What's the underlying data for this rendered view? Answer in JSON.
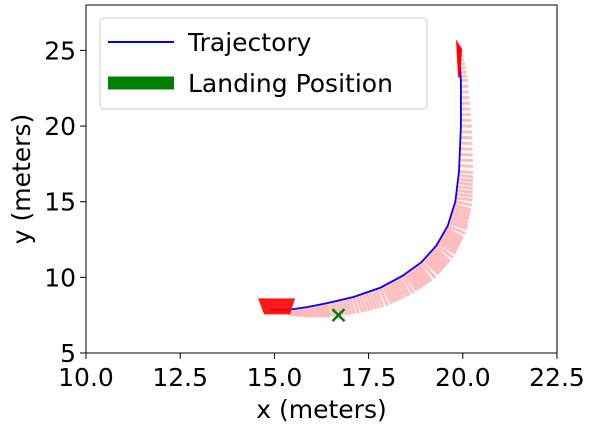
{
  "chart_data": {
    "type": "line",
    "title": "",
    "xlabel": "x (meters)",
    "ylabel": "y (meters)",
    "xlim": [
      10.0,
      22.5
    ],
    "ylim": [
      5,
      28
    ],
    "xticks": [
      10.0,
      12.5,
      15.0,
      17.5,
      20.0,
      22.5
    ],
    "xtick_labels": [
      "10.0",
      "12.5",
      "15.0",
      "17.5",
      "20.0",
      "22.5"
    ],
    "yticks": [
      5,
      10,
      15,
      20,
      25
    ],
    "ytick_labels": [
      "5",
      "10",
      "15",
      "20",
      "25"
    ],
    "grid": false,
    "legend": {
      "position": "upper-left",
      "entries": [
        {
          "label": "Trajectory",
          "color": "#0000ff",
          "style": "line"
        },
        {
          "label": "Landing Position",
          "color": "#008000",
          "style": "thick-line"
        }
      ]
    },
    "series": [
      {
        "name": "Trajectory",
        "color": "#0000ff",
        "x": [
          19.9,
          19.95,
          19.95,
          19.9,
          19.8,
          19.6,
          19.3,
          18.9,
          18.4,
          17.8,
          17.1,
          16.4,
          15.9,
          15.5,
          15.2,
          15.0,
          14.9
        ],
        "y": [
          25.2,
          23.0,
          20.0,
          17.0,
          15.0,
          13.4,
          12.1,
          11.0,
          10.1,
          9.3,
          8.7,
          8.3,
          8.05,
          7.9,
          7.85,
          7.85,
          7.9
        ]
      }
    ],
    "landing_position": {
      "name": "Landing Position",
      "x": 16.7,
      "y": 7.5,
      "color": "#008000",
      "marker": "x"
    },
    "thrust_vectors": {
      "color": "#ffb3b3",
      "note": "shaded fan of thrust-direction segments along the trajectory"
    },
    "end_markers": {
      "color": "#ff0000"
    }
  }
}
